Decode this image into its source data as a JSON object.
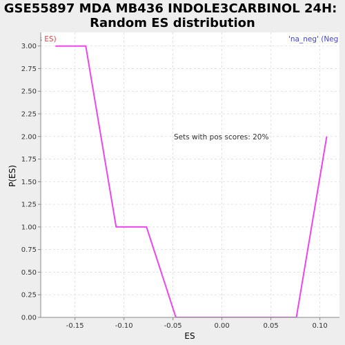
{
  "chart_data": {
    "type": "line",
    "title_lines": [
      "GSE55897 MDA MB436 INDOLE3CARBINOL 24H:",
      "Random ES distribution"
    ],
    "xlabel": "ES",
    "ylabel": "P(ES)",
    "xlim": [
      -0.185,
      0.12
    ],
    "ylim": [
      0,
      3.15
    ],
    "x_ticks": [
      -0.15,
      -0.1,
      -0.05,
      0.0,
      0.05,
      0.1
    ],
    "x_tick_labels": [
      "-0.15",
      "-0.10",
      "-0.05",
      "0.00",
      "0.05",
      "0.10"
    ],
    "y_ticks": [
      0,
      0.25,
      0.5,
      0.75,
      1.0,
      1.25,
      1.5,
      1.75,
      2.0,
      2.25,
      2.5,
      2.75,
      3.0
    ],
    "y_tick_labels": [
      "0.00",
      "0.25",
      "0.50",
      "0.75",
      "1.00",
      "1.25",
      "1.50",
      "1.75",
      "2.00",
      "2.25",
      "2.50",
      "2.75",
      "3.00"
    ],
    "grid": true,
    "series": [
      {
        "color": "#ee44ee",
        "x": [
          -0.17,
          -0.139,
          -0.108,
          -0.077,
          -0.047,
          -0.016,
          0.015,
          0.045,
          0.076,
          0.107
        ],
        "y": [
          3.0,
          3.0,
          1.0,
          1.0,
          0.0,
          0.0,
          0.0,
          0.0,
          0.0,
          2.0
        ]
      }
    ],
    "annotations": {
      "left_corner": "'na_pos' (Pos ES)",
      "left_color": "#dd4444",
      "right_corner": "'na_neg' (Neg ES)",
      "right_color": "#4444cc",
      "center": "Sets with pos scores: 20%"
    }
  }
}
